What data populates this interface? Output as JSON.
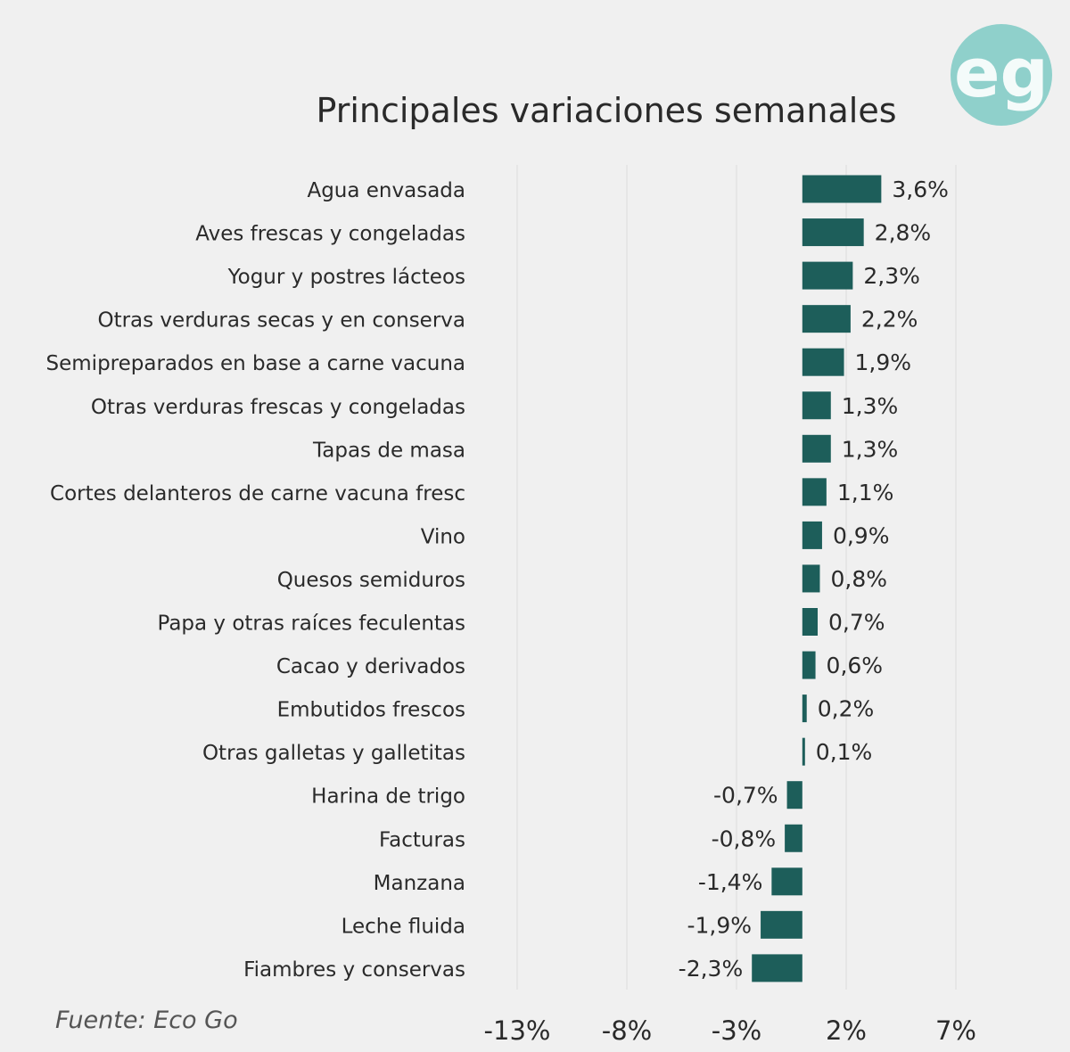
{
  "chart_data": {
    "type": "bar",
    "orientation": "horizontal",
    "title": "Principales variaciones semanales",
    "source": "Fuente: Eco Go",
    "logo_text": "eg",
    "categories": [
      "Agua envasada",
      "Aves frescas y congeladas",
      "Yogur y postres lácteos",
      "Otras verduras secas y en conserva",
      "Semipreparados en base a carne vacuna",
      "Otras verduras frescas y congeladas",
      "Tapas de masa",
      "Cortes delanteros de carne vacuna fresc",
      "Vino",
      "Quesos semiduros",
      "Papa y otras raíces feculentas",
      "Cacao y derivados",
      "Embutidos frescos",
      "Otras galletas y galletitas",
      "Harina de trigo",
      "Facturas",
      "Manzana",
      "Leche fluida",
      "Fiambres y conservas"
    ],
    "values": [
      3.6,
      2.8,
      2.3,
      2.2,
      1.9,
      1.3,
      1.3,
      1.1,
      0.9,
      0.8,
      0.7,
      0.6,
      0.2,
      0.1,
      -0.7,
      -0.8,
      -1.4,
      -1.9,
      -2.3
    ],
    "data_labels": [
      "3,6%",
      "2,8%",
      "2,3%",
      "2,2%",
      "1,9%",
      "1,3%",
      "1,3%",
      "1,1%",
      "0,9%",
      "0,8%",
      "0,7%",
      "0,6%",
      "0,2%",
      "0,1%",
      "-0,7%",
      "-0,8%",
      "-1,4%",
      "-1,9%",
      "-2,3%"
    ],
    "x_ticks": [
      -13,
      -8,
      -3,
      2,
      7
    ],
    "x_tick_labels": [
      "-13%",
      "-8%",
      "-3%",
      "2%",
      "7%"
    ],
    "xlim": [
      -13,
      7
    ],
    "grid": "vertical",
    "colors": {
      "bar": "#1d5e5a",
      "background": "#f0f0f0",
      "grid": "#dcdcdc",
      "logo": "#8fd0cb"
    }
  }
}
